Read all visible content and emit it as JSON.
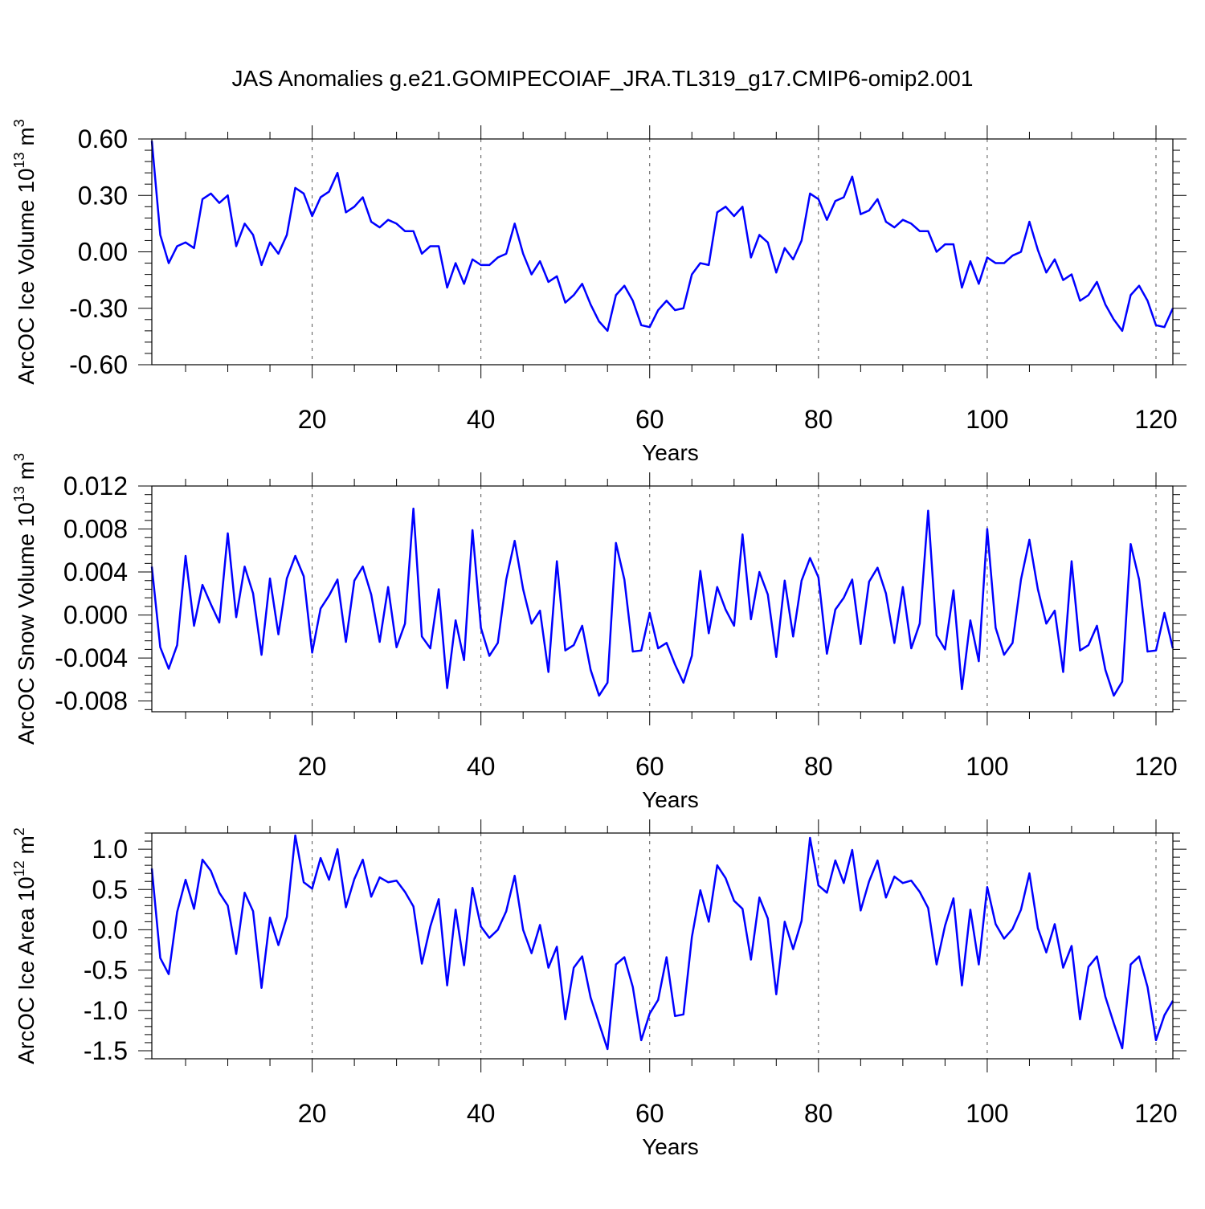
{
  "title": "JAS Anomalies g.e21.GOMIPECOIAF_JRA.TL319_g17.CMIP6-omip2.001",
  "chart_data": [
    {
      "type": "line",
      "ylabel": "ArcOC Ice Volume",
      "yunit": "10",
      "yunit_exp": "13",
      "yunit_suffix": " m",
      "yunit_pow": "3",
      "xlabel": "Years",
      "xlim": [
        1,
        122
      ],
      "ylim": [
        -0.6,
        0.6
      ],
      "xticks": [
        20,
        40,
        60,
        80,
        100,
        120
      ],
      "xtick_labels": [
        "20",
        "40",
        "60",
        "80",
        "100",
        "120"
      ],
      "yticks": [
        -0.6,
        -0.3,
        0.0,
        0.3,
        0.6
      ],
      "ytick_labels": [
        "-0.60",
        "-0.30",
        "0.00",
        "0.30",
        "0.60"
      ],
      "grid": "vertical dashed at major x ticks",
      "color": "#0000ff",
      "x": [
        1,
        2,
        3,
        4,
        5,
        6,
        7,
        8,
        9,
        10,
        11,
        12,
        13,
        14,
        15,
        16,
        17,
        18,
        19,
        20,
        21,
        22,
        23,
        24,
        25,
        26,
        27,
        28,
        29,
        30,
        31,
        32,
        33,
        34,
        35,
        36,
        37,
        38,
        39,
        40,
        41,
        42,
        43,
        44,
        45,
        46,
        47,
        48,
        49,
        50,
        51,
        52,
        53,
        54,
        55,
        56,
        57,
        58,
        59,
        60,
        61,
        62,
        63,
        64,
        65,
        66,
        67,
        68,
        69,
        70,
        71,
        72,
        73,
        74,
        75,
        76,
        77,
        78,
        79,
        80,
        81,
        82,
        83,
        84,
        85,
        86,
        87,
        88,
        89,
        90,
        91,
        92,
        93,
        94,
        95,
        96,
        97,
        98,
        99,
        100,
        101,
        102,
        103,
        104,
        105,
        106,
        107,
        108,
        109,
        110,
        111,
        112,
        113,
        114,
        115,
        116,
        117,
        118,
        119,
        120,
        121,
        122
      ],
      "values": [
        0.59,
        0.09,
        -0.06,
        0.03,
        0.05,
        0.02,
        0.28,
        0.31,
        0.26,
        0.3,
        0.03,
        0.15,
        0.09,
        -0.07,
        0.05,
        -0.01,
        0.09,
        0.34,
        0.31,
        0.19,
        0.29,
        0.32,
        0.42,
        0.21,
        0.24,
        0.29,
        0.16,
        0.13,
        0.17,
        0.15,
        0.11,
        0.11,
        -0.01,
        0.03,
        0.03,
        -0.19,
        -0.06,
        -0.17,
        -0.04,
        -0.07,
        -0.07,
        -0.03,
        -0.01,
        0.15,
        -0.01,
        -0.12,
        -0.05,
        -0.16,
        -0.13,
        -0.27,
        -0.23,
        -0.17,
        -0.28,
        -0.37,
        -0.42,
        -0.23,
        -0.18,
        -0.26,
        -0.39,
        -0.4,
        -0.31,
        -0.26,
        -0.31,
        -0.3,
        -0.12,
        -0.06,
        -0.07,
        0.21,
        0.24,
        0.19,
        0.24,
        -0.03,
        0.09,
        0.05,
        -0.11,
        0.02,
        -0.04,
        0.06,
        0.31,
        0.28,
        0.17,
        0.27,
        0.29,
        0.4,
        0.2,
        0.22,
        0.28,
        0.16,
        0.13,
        0.17,
        0.15,
        0.11,
        0.11,
        0.0,
        0.04,
        0.04,
        -0.19,
        -0.05,
        -0.17,
        -0.03,
        -0.06,
        -0.06,
        -0.02,
        0.0,
        0.16,
        0.01,
        -0.11,
        -0.04,
        -0.15,
        -0.12,
        -0.26,
        -0.23,
        -0.16,
        -0.28,
        -0.36,
        -0.42,
        -0.23,
        -0.18,
        -0.26,
        -0.39,
        -0.4,
        -0.3
      ]
    },
    {
      "type": "line",
      "ylabel": "ArcOC Snow Volume",
      "yunit": "10",
      "yunit_exp": "13",
      "yunit_suffix": " m",
      "yunit_pow": "3",
      "xlabel": "Years",
      "xlim": [
        1,
        122
      ],
      "ylim": [
        -0.009,
        0.012
      ],
      "xticks": [
        20,
        40,
        60,
        80,
        100,
        120
      ],
      "xtick_labels": [
        "20",
        "40",
        "60",
        "80",
        "100",
        "120"
      ],
      "yticks": [
        -0.008,
        -0.004,
        0.0,
        0.004,
        0.008,
        0.012
      ],
      "ytick_labels": [
        "-0.008",
        "-0.004",
        "0.000",
        "0.004",
        "0.008",
        "0.012"
      ],
      "grid": "vertical dashed at major x ticks",
      "color": "#0000ff",
      "x": [
        1,
        2,
        3,
        4,
        5,
        6,
        7,
        8,
        9,
        10,
        11,
        12,
        13,
        14,
        15,
        16,
        17,
        18,
        19,
        20,
        21,
        22,
        23,
        24,
        25,
        26,
        27,
        28,
        29,
        30,
        31,
        32,
        33,
        34,
        35,
        36,
        37,
        38,
        39,
        40,
        41,
        42,
        43,
        44,
        45,
        46,
        47,
        48,
        49,
        50,
        51,
        52,
        53,
        54,
        55,
        56,
        57,
        58,
        59,
        60,
        61,
        62,
        63,
        64,
        65,
        66,
        67,
        68,
        69,
        70,
        71,
        72,
        73,
        74,
        75,
        76,
        77,
        78,
        79,
        80,
        81,
        82,
        83,
        84,
        85,
        86,
        87,
        88,
        89,
        90,
        91,
        92,
        93,
        94,
        95,
        96,
        97,
        98,
        99,
        100,
        101,
        102,
        103,
        104,
        105,
        106,
        107,
        108,
        109,
        110,
        111,
        112,
        113,
        114,
        115,
        116,
        117,
        118,
        119,
        120,
        121,
        122
      ],
      "values": [
        0.0045,
        -0.003,
        -0.005,
        -0.0028,
        0.0055,
        -0.001,
        0.0028,
        0.001,
        -0.0007,
        0.0076,
        -0.0002,
        0.0045,
        0.002,
        -0.0037,
        0.0034,
        -0.0018,
        0.0034,
        0.0055,
        0.0036,
        -0.0035,
        0.0006,
        0.0018,
        0.0033,
        -0.0025,
        0.0032,
        0.0045,
        0.0019,
        -0.0025,
        0.0026,
        -0.003,
        -0.0008,
        0.0099,
        -0.002,
        -0.0031,
        0.0024,
        -0.0068,
        -0.0005,
        -0.0042,
        0.0079,
        -0.0012,
        -0.0038,
        -0.0026,
        0.0033,
        0.0069,
        0.0024,
        -0.0008,
        0.0004,
        -0.0053,
        0.005,
        -0.0033,
        -0.0028,
        -0.001,
        -0.0051,
        -0.0075,
        -0.0063,
        0.0067,
        0.0033,
        -0.0034,
        -0.0033,
        0.0002,
        -0.0031,
        -0.0026,
        -0.0046,
        -0.0063,
        -0.0038,
        0.0041,
        -0.0017,
        0.0026,
        0.0005,
        -0.001,
        0.0075,
        -0.0004,
        0.004,
        0.0019,
        -0.0039,
        0.0032,
        -0.002,
        0.0032,
        0.0053,
        0.0035,
        -0.0036,
        0.0005,
        0.0016,
        0.0033,
        -0.0027,
        0.0031,
        0.0044,
        0.002,
        -0.0026,
        0.0026,
        -0.0031,
        -0.0008,
        0.0097,
        -0.0019,
        -0.0032,
        0.0023,
        -0.0069,
        -0.0005,
        -0.0043,
        0.008,
        -0.0012,
        -0.0037,
        -0.0026,
        0.0033,
        0.007,
        0.0024,
        -0.0008,
        0.0004,
        -0.0053,
        0.005,
        -0.0033,
        -0.0028,
        -0.001,
        -0.0051,
        -0.0075,
        -0.0062,
        0.0066,
        0.0033,
        -0.0034,
        -0.0033,
        0.0002,
        -0.0031
      ]
    },
    {
      "type": "line",
      "ylabel": "ArcOC Ice Area",
      "yunit": "10",
      "yunit_exp": "12",
      "yunit_suffix": " m",
      "yunit_pow": "2",
      "xlabel": "Years",
      "xlim": [
        1,
        122
      ],
      "ylim": [
        -1.6,
        1.2
      ],
      "xticks": [
        20,
        40,
        60,
        80,
        100,
        120
      ],
      "xtick_labels": [
        "20",
        "40",
        "60",
        "80",
        "100",
        "120"
      ],
      "yticks": [
        -1.5,
        -1.0,
        -0.5,
        0.0,
        0.5,
        1.0
      ],
      "ytick_labels": [
        "-1.5",
        "-1.0",
        "-0.5",
        "0.0",
        "0.5",
        "1.0"
      ],
      "grid": "vertical dashed at major x ticks",
      "color": "#0000ff",
      "x": [
        1,
        2,
        3,
        4,
        5,
        6,
        7,
        8,
        9,
        10,
        11,
        12,
        13,
        14,
        15,
        16,
        17,
        18,
        19,
        20,
        21,
        22,
        23,
        24,
        25,
        26,
        27,
        28,
        29,
        30,
        31,
        32,
        33,
        34,
        35,
        36,
        37,
        38,
        39,
        40,
        41,
        42,
        43,
        44,
        45,
        46,
        47,
        48,
        49,
        50,
        51,
        52,
        53,
        54,
        55,
        56,
        57,
        58,
        59,
        60,
        61,
        62,
        63,
        64,
        65,
        66,
        67,
        68,
        69,
        70,
        71,
        72,
        73,
        74,
        75,
        76,
        77,
        78,
        79,
        80,
        81,
        82,
        83,
        84,
        85,
        86,
        87,
        88,
        89,
        90,
        91,
        92,
        93,
        94,
        95,
        96,
        97,
        98,
        99,
        100,
        101,
        102,
        103,
        104,
        105,
        106,
        107,
        108,
        109,
        110,
        111,
        112,
        113,
        114,
        115,
        116,
        117,
        118,
        119,
        120,
        121,
        122
      ],
      "values": [
        0.76,
        -0.35,
        -0.55,
        0.22,
        0.62,
        0.26,
        0.87,
        0.73,
        0.46,
        0.3,
        -0.3,
        0.46,
        0.23,
        -0.72,
        0.15,
        -0.19,
        0.16,
        1.17,
        0.59,
        0.51,
        0.89,
        0.62,
        1.0,
        0.28,
        0.63,
        0.87,
        0.41,
        0.65,
        0.59,
        0.61,
        0.47,
        0.29,
        -0.42,
        0.04,
        0.38,
        -0.69,
        0.25,
        -0.44,
        0.52,
        0.04,
        -0.1,
        0.0,
        0.23,
        0.67,
        0.0,
        -0.29,
        0.06,
        -0.47,
        -0.21,
        -1.11,
        -0.47,
        -0.33,
        -0.84,
        -1.16,
        -1.48,
        -0.43,
        -0.34,
        -0.71,
        -1.37,
        -1.04,
        -0.87,
        -0.34,
        -1.07,
        -1.05,
        -0.09,
        0.49,
        0.1,
        0.8,
        0.64,
        0.36,
        0.26,
        -0.37,
        0.4,
        0.14,
        -0.8,
        0.1,
        -0.24,
        0.11,
        1.14,
        0.55,
        0.46,
        0.86,
        0.58,
        0.99,
        0.24,
        0.6,
        0.86,
        0.4,
        0.66,
        0.58,
        0.61,
        0.47,
        0.27,
        -0.43,
        0.05,
        0.39,
        -0.69,
        0.25,
        -0.43,
        0.53,
        0.07,
        -0.11,
        0.01,
        0.25,
        0.7,
        0.02,
        -0.28,
        0.07,
        -0.47,
        -0.2,
        -1.11,
        -0.46,
        -0.33,
        -0.83,
        -1.16,
        -1.47,
        -0.43,
        -0.33,
        -0.71,
        -1.37,
        -1.06,
        -0.88
      ]
    }
  ]
}
